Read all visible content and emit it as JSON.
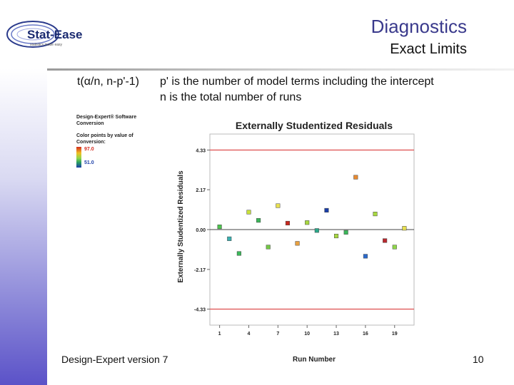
{
  "slide": {
    "title": "Diagnostics",
    "subtitle": "Exact Limits",
    "formula": "t(α/n, n-p'-1)",
    "desc_line1": "p' is the number of model terms including the intercept",
    "desc_line2": "n is the total number of runs",
    "footer": "Design-Expert version 7",
    "page_number": "10"
  },
  "logo": {
    "brand": "Stat-Ease",
    "tagline": "statistics made easy"
  },
  "legend": {
    "line1": "Design-Expert® Software",
    "line2": "Conversion",
    "line3": "Color points by value of",
    "line4": "Conversion:",
    "max_label": "97.0",
    "min_label": "51.0"
  },
  "colors": {
    "accent": "#3a3a8c",
    "limit_line": "#e05a5a",
    "zero_line": "#444444"
  },
  "chart_data": {
    "type": "scatter",
    "title": "Externally Studentized Residuals",
    "xlabel": "Run Number",
    "ylabel": "Externally Studentized Residuals",
    "x_ticks": [
      "1",
      "4",
      "7",
      "10",
      "13",
      "16",
      "19"
    ],
    "y_ticks": [
      "4.33",
      "2.17",
      "0.00",
      "-2.17",
      "-4.33"
    ],
    "xlim": [
      0,
      21
    ],
    "ylim": [
      -5.2,
      5.2
    ],
    "limits": [
      4.33,
      -4.33
    ],
    "points": [
      {
        "run": 1,
        "residual": 0.15,
        "color": "#4cc44c"
      },
      {
        "run": 2,
        "residual": -0.5,
        "color": "#3ab0b0"
      },
      {
        "run": 3,
        "residual": -1.3,
        "color": "#3bb85a"
      },
      {
        "run": 4,
        "residual": 0.95,
        "color": "#c8e03a"
      },
      {
        "run": 5,
        "residual": 0.5,
        "color": "#3bb85a"
      },
      {
        "run": 6,
        "residual": -0.95,
        "color": "#74c846"
      },
      {
        "run": 7,
        "residual": 1.3,
        "color": "#e8e050"
      },
      {
        "run": 8,
        "residual": 0.35,
        "color": "#c8281e"
      },
      {
        "run": 9,
        "residual": -0.75,
        "color": "#e8a040"
      },
      {
        "run": 10,
        "residual": 0.38,
        "color": "#a8d840"
      },
      {
        "run": 11,
        "residual": -0.05,
        "color": "#2aa88a"
      },
      {
        "run": 12,
        "residual": 1.05,
        "color": "#1a3ea8"
      },
      {
        "run": 13,
        "residual": -0.35,
        "color": "#a8d840"
      },
      {
        "run": 14,
        "residual": -0.15,
        "color": "#3bb85a"
      },
      {
        "run": 15,
        "residual": 2.85,
        "color": "#e88a30"
      },
      {
        "run": 16,
        "residual": -1.45,
        "color": "#2a6acc"
      },
      {
        "run": 17,
        "residual": 0.85,
        "color": "#a8d840"
      },
      {
        "run": 18,
        "residual": -0.6,
        "color": "#b8282e"
      },
      {
        "run": 19,
        "residual": -0.95,
        "color": "#8fd64a"
      },
      {
        "run": 20,
        "residual": 0.07,
        "color": "#e8e050"
      }
    ]
  }
}
